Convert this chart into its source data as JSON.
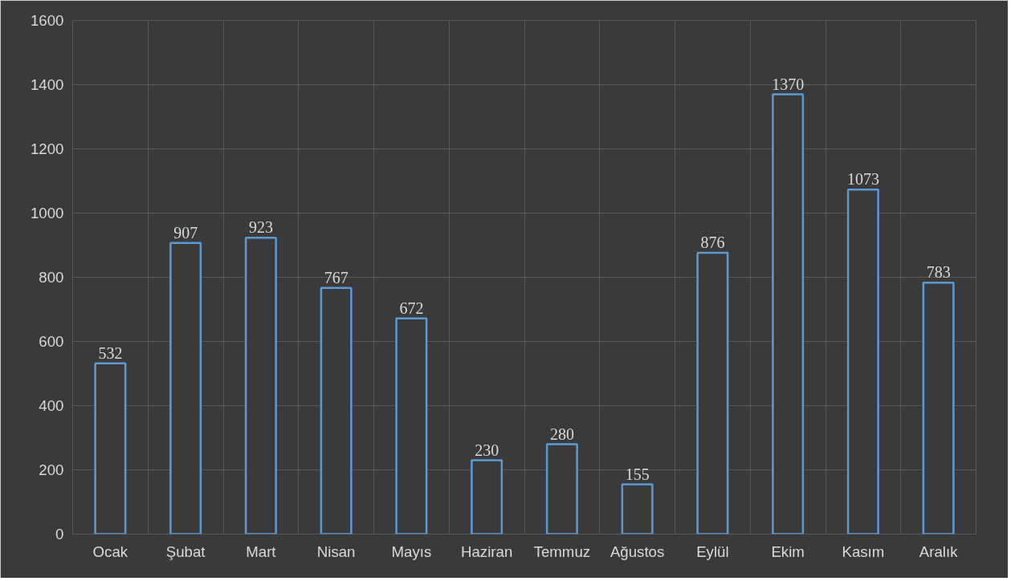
{
  "chart_data": {
    "type": "bar",
    "categories": [
      "Ocak",
      "Şubat",
      "Mart",
      "Nisan",
      "Mayıs",
      "Haziran",
      "Temmuz",
      "Ağustos",
      "Eylül",
      "Ekim",
      "Kasım",
      "Aralık"
    ],
    "values": [
      532,
      907,
      923,
      767,
      672,
      230,
      280,
      155,
      876,
      1370,
      1073,
      783
    ],
    "color": "#5b9bd5",
    "ylim": [
      0,
      1600
    ],
    "yticks": [
      0,
      200,
      400,
      600,
      800,
      1000,
      1200,
      1400,
      1600
    ],
    "grid": true,
    "data_labels": true
  }
}
